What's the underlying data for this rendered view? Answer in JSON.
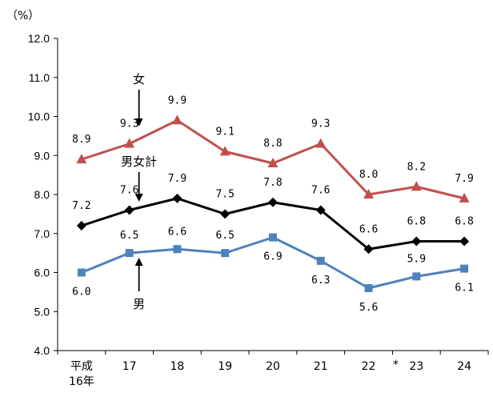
{
  "chart_data": {
    "type": "line",
    "unit_label": "（%）",
    "ylim": [
      4.0,
      12.0
    ],
    "yticks": [
      "4.0",
      "5.0",
      "6.0",
      "7.0",
      "8.0",
      "9.0",
      "10.0",
      "11.0",
      "12.0"
    ],
    "categories": [
      "平成\n16年",
      "17",
      "18",
      "19",
      "20",
      "21",
      "22",
      "23",
      "24"
    ],
    "asterisk_category_index": 7,
    "asterisk": "*",
    "grid": false,
    "series": [
      {
        "name": "女",
        "color": "#c0504d",
        "marker": "triangle",
        "values": [
          8.9,
          9.3,
          9.9,
          9.1,
          8.8,
          9.3,
          8.0,
          8.2,
          7.9
        ]
      },
      {
        "name": "男女計",
        "color": "#000000",
        "marker": "diamond",
        "values": [
          7.2,
          7.6,
          7.9,
          7.5,
          7.8,
          7.6,
          6.6,
          6.8,
          6.8
        ]
      },
      {
        "name": "男",
        "color": "#4f81bd",
        "marker": "square",
        "values": [
          6.0,
          6.5,
          6.6,
          6.5,
          6.9,
          6.3,
          5.6,
          5.9,
          6.1
        ]
      }
    ],
    "annotations": [
      {
        "text": "女",
        "arrow": "down",
        "series": 0
      },
      {
        "text": "男女計",
        "arrow": "down",
        "series": 1
      },
      {
        "text": "男",
        "arrow": "up",
        "series": 2
      }
    ]
  }
}
